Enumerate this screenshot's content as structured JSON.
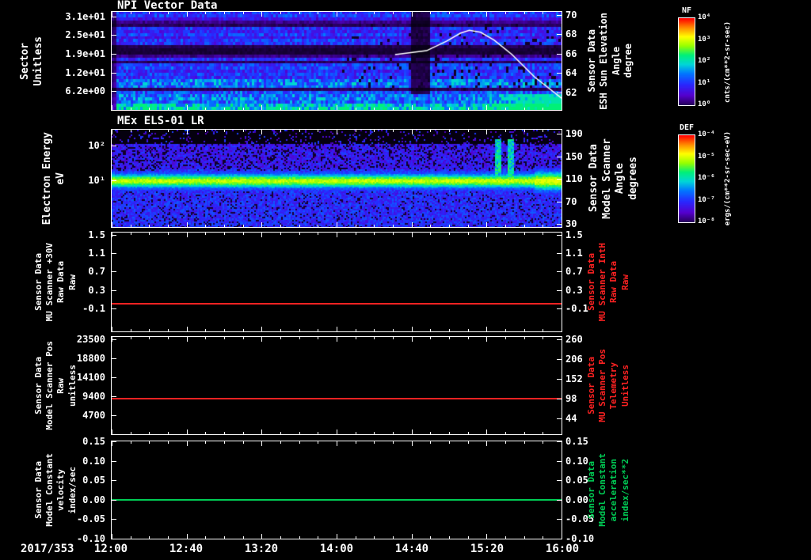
{
  "x_axis": {
    "date_label": "2017/353",
    "tick_labels": [
      "12:00",
      "12:40",
      "13:20",
      "14:00",
      "14:40",
      "15:20",
      "16:00"
    ]
  },
  "colorbars": [
    {
      "title": "NF",
      "unit": "cnts/(cm**2-sr-sec)",
      "tick_labels": [
        "10⁴",
        "10³",
        "10²",
        "10¹",
        "10⁰"
      ]
    },
    {
      "title": "DEF",
      "unit": "ergs/(cm**2-sr-sec-eV)",
      "tick_labels": [
        "10⁻⁴",
        "10⁻⁵",
        "10⁻⁶",
        "10⁻⁷",
        "10⁻⁸"
      ]
    }
  ],
  "chart_data": [
    {
      "id": "npi",
      "type": "heatmap",
      "title": "NPI Vector Data",
      "colorbar": "NF",
      "x_ticks": [
        "12:00",
        "12:40",
        "13:20",
        "14:00",
        "14:40",
        "15:20",
        "16:00"
      ],
      "left_axis": {
        "label_lines": [
          "Sector",
          "Unitless"
        ],
        "tick_labels": [
          "3.1e+01",
          "2.5e+01",
          "1.9e+01",
          "1.2e+01",
          "6.2e+00"
        ],
        "tick_values": [
          31,
          24.8,
          18.6,
          12.4,
          6.2
        ],
        "range": [
          32.5,
          0
        ]
      },
      "right_axis": {
        "label_lines": [
          "Sensor Data",
          "ESH Sun Elevation",
          "Angle",
          "degree"
        ],
        "tick_labels": [
          "70",
          "68",
          "66",
          "64",
          "62"
        ],
        "tick_values": [
          70,
          68,
          66,
          64,
          62
        ],
        "range": [
          70.3,
          60.2
        ]
      },
      "overlay_line": {
        "name": "ESH Sun Elevation Angle",
        "color": "#ffffff",
        "points_time_frac": [
          0.63,
          0.7,
          0.745,
          0.775,
          0.795,
          0.82,
          0.85,
          0.89,
          0.94,
          1.0
        ],
        "points_value": [
          65.9,
          66.3,
          67.3,
          68.1,
          68.4,
          68.2,
          67.4,
          65.9,
          63.6,
          61.4
        ]
      },
      "heat": {
        "rows": 32,
        "row_intensity": [
          0.3,
          0.3,
          0.22,
          0.1,
          0.06,
          0.28,
          0.25,
          0.3,
          0.22,
          0.3,
          0.28,
          0.05,
          0.03,
          0.03,
          0.1,
          0.28,
          0.06,
          0.3,
          0.32,
          0.26,
          0.3,
          0.28,
          0.38,
          0.4,
          0.36,
          0.06,
          0.34,
          0.38,
          0.4,
          0.36,
          0.46,
          0.5
        ],
        "gap_time_frac": [
          0.664,
          0.705
        ],
        "bright_bottom_right_from_frac": 0.8
      }
    },
    {
      "id": "els",
      "type": "heatmap",
      "title": "MEx ELS-01 LR",
      "colorbar": "DEF",
      "left_axis": {
        "label_lines": [
          "Electron Energy",
          "eV"
        ],
        "tick_labels": [
          "10²",
          "10¹"
        ],
        "tick_values": [
          100,
          10
        ],
        "range_log": [
          2.44,
          -0.33
        ]
      },
      "right_axis": {
        "label_lines": [
          "Sensor Data",
          "Model Scanner",
          "Angle",
          "degrees"
        ],
        "tick_labels": [
          "190",
          "150",
          "110",
          "70",
          "30"
        ],
        "tick_values": [
          190,
          150,
          110,
          70,
          30
        ],
        "range": [
          197,
          24.5
        ]
      },
      "heat": {
        "band_center_log": 1.0,
        "band_sigma_log": 0.13,
        "burst_time_frac": [
          [
            0.852,
            0.863
          ],
          [
            0.878,
            0.892
          ]
        ],
        "burst_energy_log": [
          0.9,
          2.2
        ]
      }
    },
    {
      "id": "mu-scanner-raw",
      "type": "line",
      "left_axis": {
        "label_lines": [
          "Sensor Data",
          "MU Scanner +30V",
          "Raw Data",
          "Raw"
        ],
        "tick_labels": [
          "1.5",
          "1.1",
          "0.7",
          "0.3",
          "-0.1"
        ],
        "tick_values": [
          1.5,
          1.1,
          0.7,
          0.3,
          -0.1
        ],
        "range": [
          1.55,
          -0.6
        ]
      },
      "right_axis": {
        "label_lines": [
          "Sensor Data",
          "MU Scanner IntH",
          "Raw Data",
          "Raw"
        ],
        "tick_labels": [
          "1.5",
          "1.1",
          "0.7",
          "0.3",
          "-0.1"
        ],
        "tick_values": [
          1.5,
          1.1,
          0.7,
          0.3,
          -0.1
        ],
        "range": [
          1.55,
          -0.6
        ],
        "color": "#ff2222"
      },
      "series": [
        {
          "name": "MU Scanner +30V Raw Data",
          "color": "#ff2222",
          "constant_value": 0.0
        }
      ]
    },
    {
      "id": "scanner-pos",
      "type": "line",
      "left_axis": {
        "label_lines": [
          "Sensor Data",
          "Model Scanner Pos",
          "Raw",
          "unitless"
        ],
        "tick_labels": [
          "23500",
          "18800",
          "14100",
          "9400",
          "4700"
        ],
        "tick_values": [
          23500,
          18800,
          14100,
          9400,
          4700
        ],
        "range": [
          24080,
          0
        ]
      },
      "right_axis": {
        "label_lines": [
          "Sensor Data",
          "MU Scanner Pos",
          "Telemetry",
          "Unitless"
        ],
        "tick_labels": [
          "260",
          "206",
          "152",
          "98",
          "44"
        ],
        "tick_values": [
          260,
          206,
          152,
          98,
          44
        ],
        "range": [
          266.5,
          0
        ],
        "color": "#ff2222"
      },
      "series": [
        {
          "name": "Model Scanner Pos Raw",
          "color": "#ff2222",
          "constant_value": 8800
        }
      ]
    },
    {
      "id": "model-constant",
      "type": "line",
      "left_axis": {
        "label_lines": [
          "Sensor Data",
          "Model Constant",
          "velocity",
          "index/sec"
        ],
        "tick_labels": [
          "0.15",
          "0.10",
          "0.05",
          "0.00",
          "-0.05",
          "-0.10"
        ],
        "tick_values": [
          0.15,
          0.1,
          0.05,
          0.0,
          -0.05,
          -0.1
        ],
        "range": [
          0.15,
          -0.1
        ]
      },
      "right_axis": {
        "label_lines": [
          "Sensor Data",
          "Model Constant",
          "acceleration",
          "index/sec**2"
        ],
        "tick_labels": [
          "0.15",
          "0.10",
          "0.05",
          "0.00",
          "-0.05",
          "-0.10"
        ],
        "tick_values": [
          0.15,
          0.1,
          0.05,
          0.0,
          -0.05,
          -0.1
        ],
        "range": [
          0.15,
          -0.1
        ],
        "color": "#00cc55"
      },
      "series": [
        {
          "name": "Model Constant velocity",
          "color": "#00cc55",
          "constant_value": 0.0
        }
      ]
    }
  ]
}
